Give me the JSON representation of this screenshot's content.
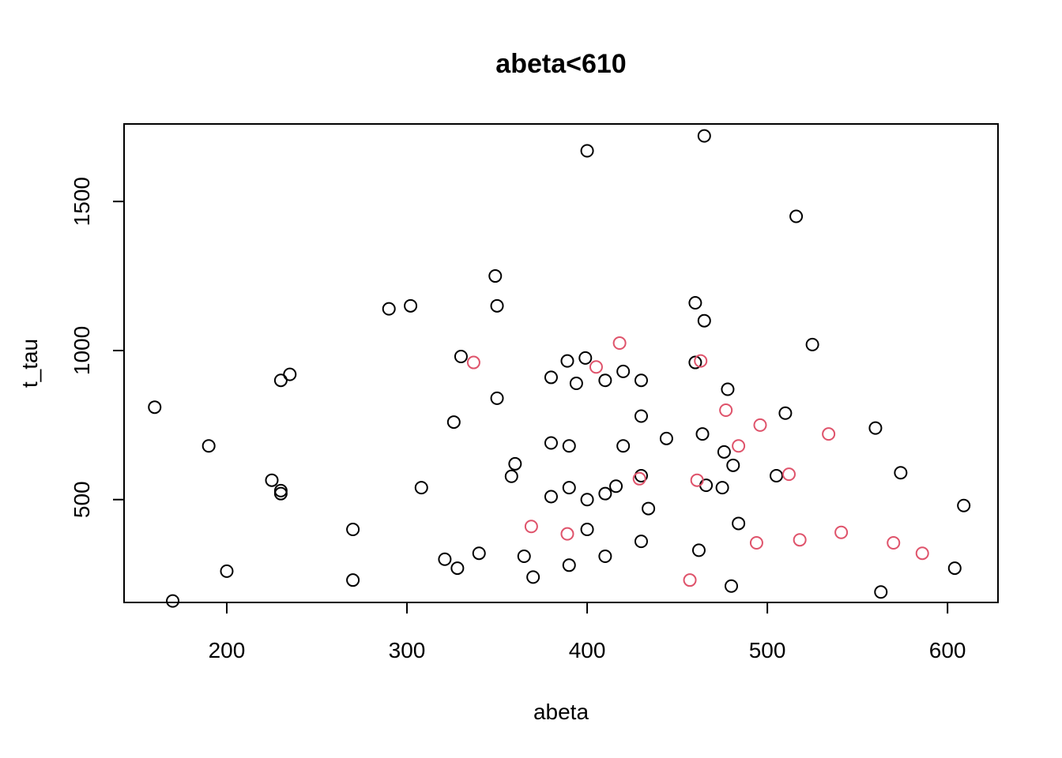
{
  "chart_data": {
    "type": "scatter",
    "title": "abeta<610",
    "xlabel": "abeta",
    "ylabel": "t_tau",
    "xlim": [
      143,
      628
    ],
    "ylim": [
      155,
      1760
    ],
    "x_ticks": [
      "200",
      "300",
      "400",
      "500",
      "600"
    ],
    "y_ticks": [
      "500",
      "1000",
      "1500"
    ],
    "grid": false,
    "legend": "none",
    "colors": {
      "black": "#000000",
      "red": "#DF536B"
    },
    "series": [
      {
        "color": "#000000",
        "points": [
          [
            160,
            810
          ],
          [
            170,
            160
          ],
          [
            190,
            680
          ],
          [
            200,
            260
          ],
          [
            225,
            565
          ],
          [
            230,
            530
          ],
          [
            230,
            520
          ],
          [
            230,
            900
          ],
          [
            235,
            920
          ],
          [
            270,
            400
          ],
          [
            270,
            230
          ],
          [
            290,
            1140
          ],
          [
            302,
            1150
          ],
          [
            308,
            540
          ],
          [
            321,
            300
          ],
          [
            326,
            760
          ],
          [
            328,
            270
          ],
          [
            330,
            980
          ],
          [
            340,
            320
          ],
          [
            349,
            1250
          ],
          [
            350,
            1150
          ],
          [
            350,
            840
          ],
          [
            358,
            578
          ],
          [
            360,
            620
          ],
          [
            365,
            310
          ],
          [
            370,
            240
          ],
          [
            380,
            910
          ],
          [
            380,
            690
          ],
          [
            380,
            510
          ],
          [
            389,
            965
          ],
          [
            390,
            680
          ],
          [
            390,
            540
          ],
          [
            390,
            280
          ],
          [
            394,
            890
          ],
          [
            399,
            975
          ],
          [
            400,
            1670
          ],
          [
            400,
            500
          ],
          [
            400,
            400
          ],
          [
            410,
            900
          ],
          [
            410,
            520
          ],
          [
            410,
            310
          ],
          [
            416,
            545
          ],
          [
            420,
            930
          ],
          [
            420,
            680
          ],
          [
            430,
            900
          ],
          [
            430,
            780
          ],
          [
            430,
            580
          ],
          [
            430,
            360
          ],
          [
            434,
            470
          ],
          [
            444,
            705
          ],
          [
            460,
            1160
          ],
          [
            460,
            960
          ],
          [
            462,
            330
          ],
          [
            465,
            1720
          ],
          [
            465,
            1100
          ],
          [
            464,
            720
          ],
          [
            466,
            548
          ],
          [
            475,
            540
          ],
          [
            476,
            660
          ],
          [
            478,
            870
          ],
          [
            480,
            210
          ],
          [
            481,
            615
          ],
          [
            484,
            420
          ],
          [
            505,
            580
          ],
          [
            510,
            790
          ],
          [
            516,
            1450
          ],
          [
            525,
            1020
          ],
          [
            560,
            740
          ],
          [
            563,
            190
          ],
          [
            574,
            590
          ],
          [
            604,
            270
          ],
          [
            609,
            480
          ]
        ]
      },
      {
        "color": "#DF536B",
        "points": [
          [
            337,
            960
          ],
          [
            369,
            410
          ],
          [
            389,
            385
          ],
          [
            405,
            945
          ],
          [
            418,
            1025
          ],
          [
            429,
            570
          ],
          [
            457,
            230
          ],
          [
            461,
            565
          ],
          [
            463,
            965
          ],
          [
            477,
            800
          ],
          [
            484,
            680
          ],
          [
            494,
            355
          ],
          [
            496,
            750
          ],
          [
            512,
            585
          ],
          [
            518,
            365
          ],
          [
            534,
            720
          ],
          [
            541,
            390
          ],
          [
            570,
            355
          ],
          [
            586,
            320
          ]
        ]
      }
    ]
  }
}
